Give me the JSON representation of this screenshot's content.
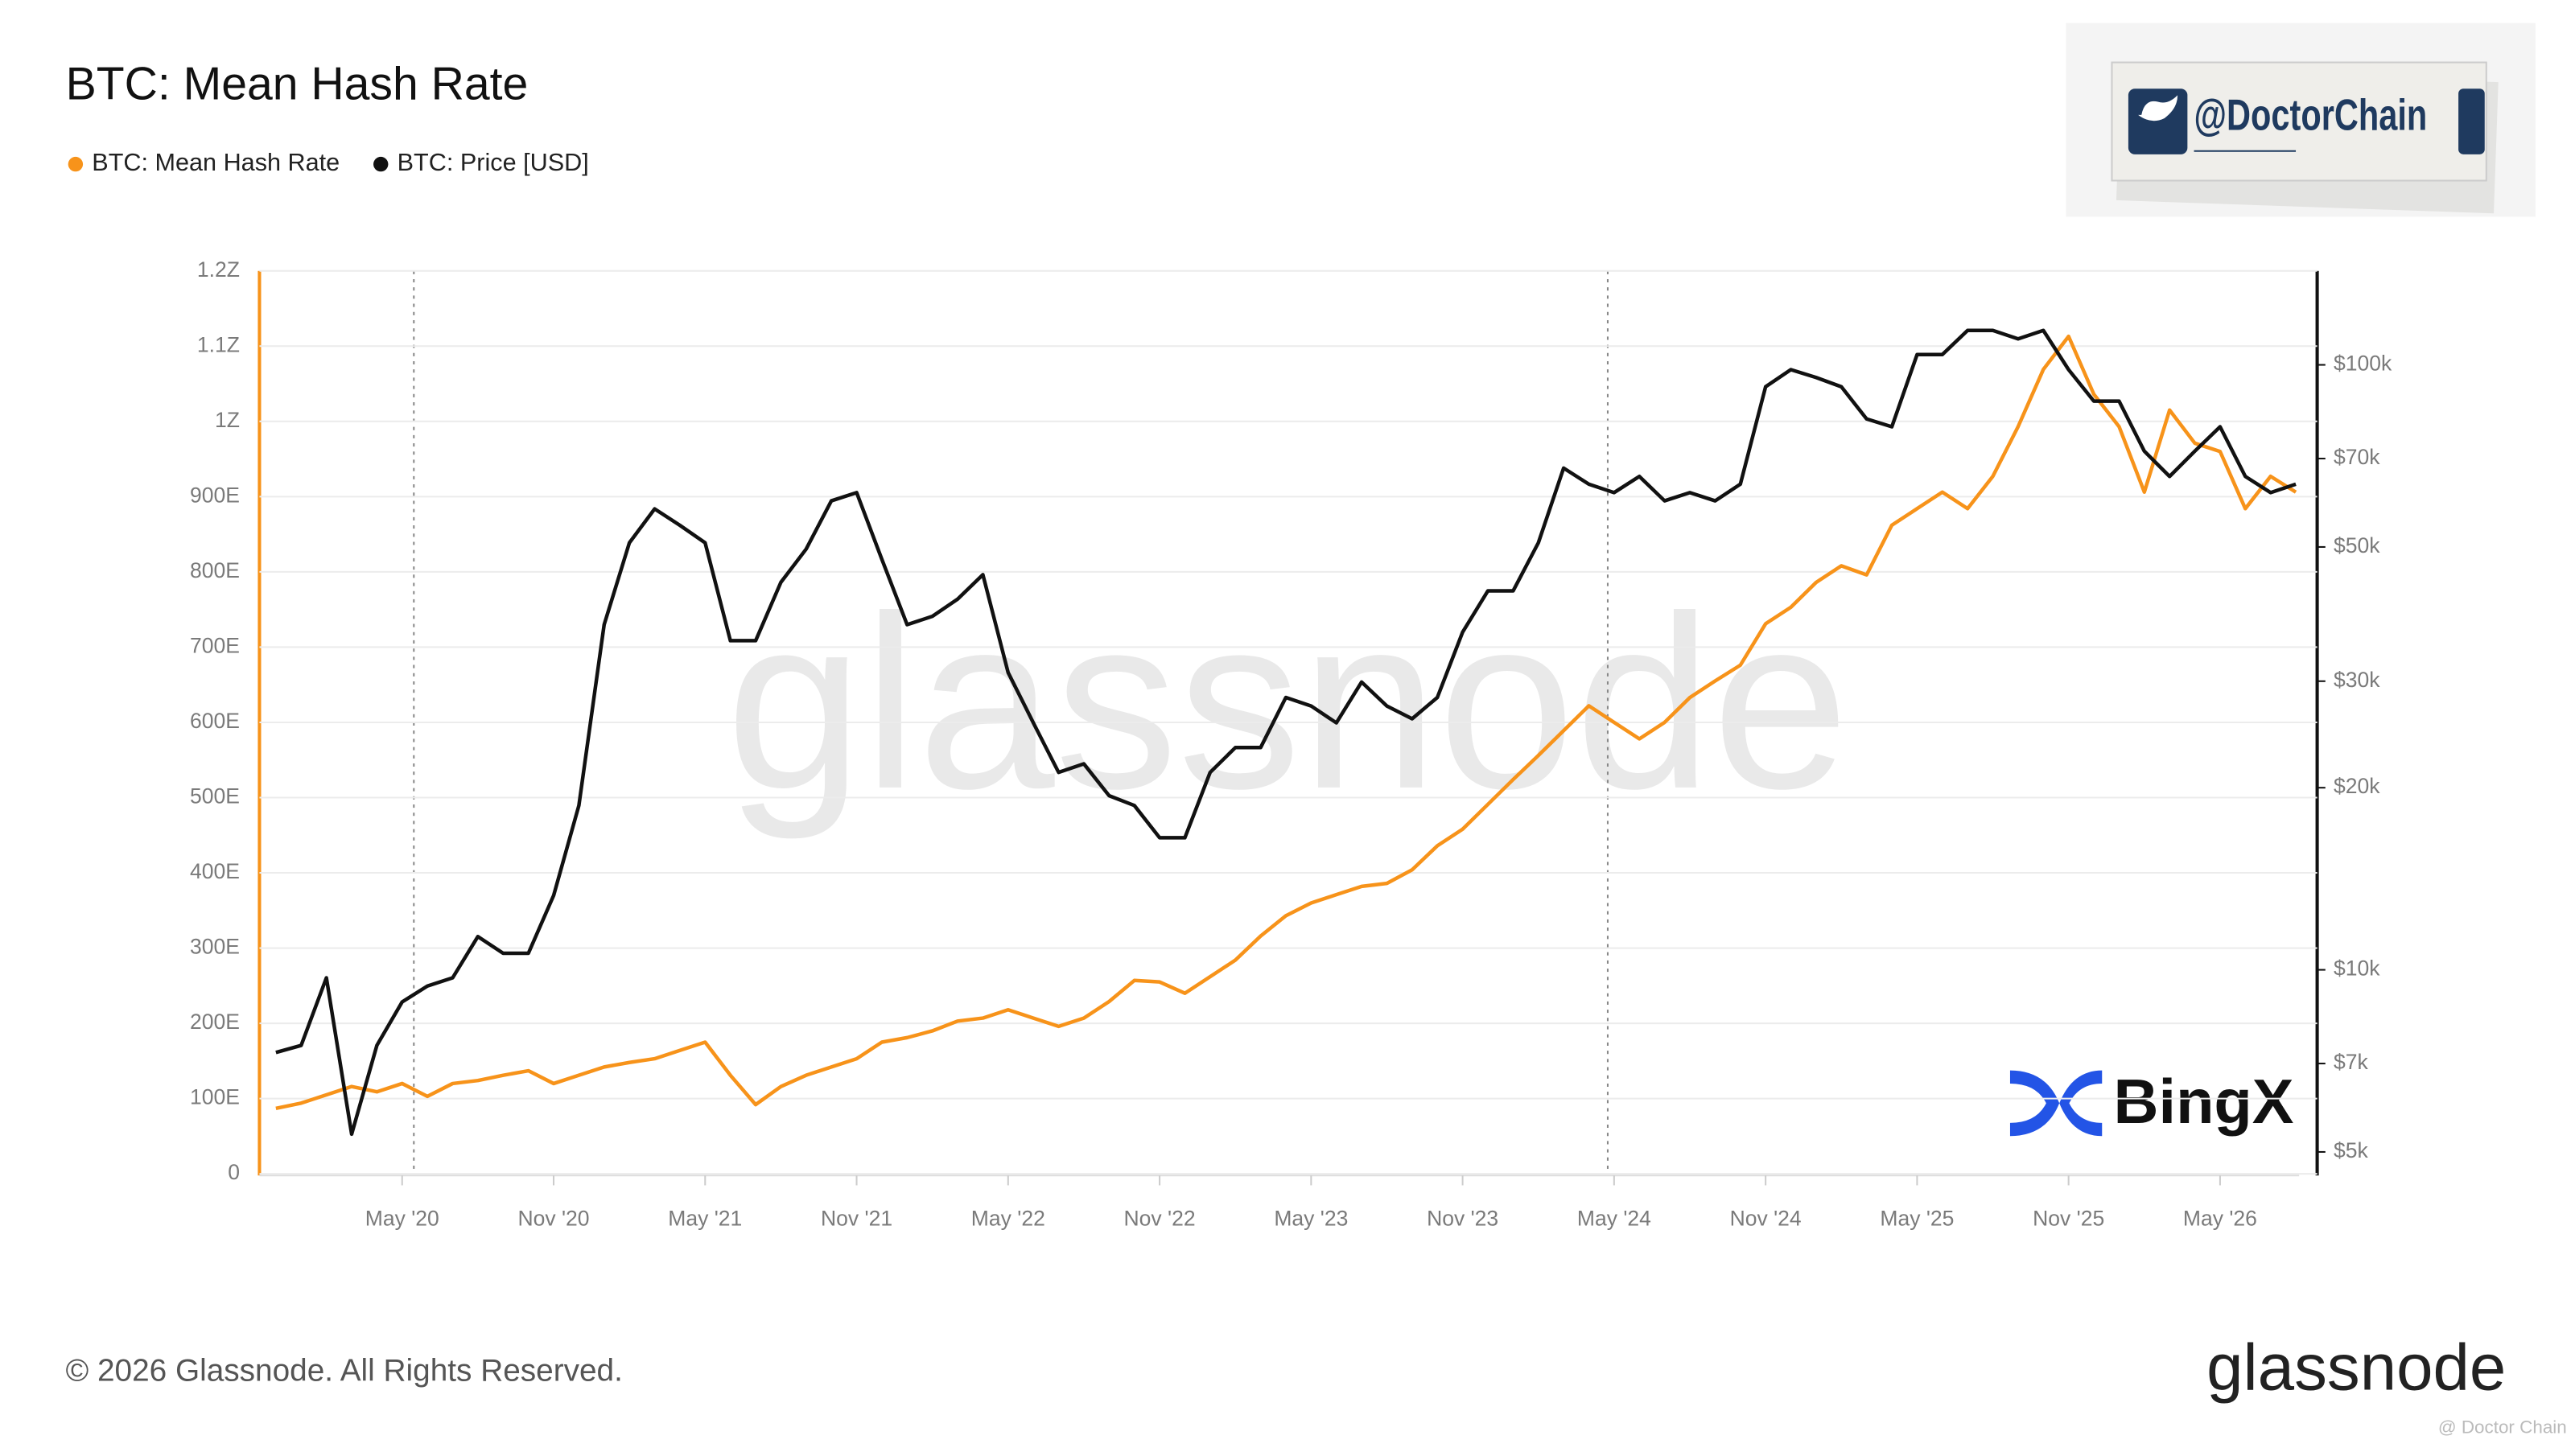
{
  "chart_data": {
    "type": "line",
    "title": "BTC: Mean Hash Rate",
    "x": [
      "2019-12",
      "2020-01",
      "2020-02",
      "2020-03",
      "2020-04",
      "2020-05",
      "2020-06",
      "2020-07",
      "2020-08",
      "2020-09",
      "2020-10",
      "2020-11",
      "2020-12",
      "2021-01",
      "2021-02",
      "2021-03",
      "2021-04",
      "2021-05",
      "2021-06",
      "2021-07",
      "2021-08",
      "2021-09",
      "2021-10",
      "2021-11",
      "2021-12",
      "2022-01",
      "2022-02",
      "2022-03",
      "2022-04",
      "2022-05",
      "2022-06",
      "2022-07",
      "2022-08",
      "2022-09",
      "2022-10",
      "2022-11",
      "2022-12",
      "2023-01",
      "2023-02",
      "2023-03",
      "2023-04",
      "2023-05",
      "2023-06",
      "2023-07",
      "2023-08",
      "2023-09",
      "2023-10",
      "2023-11",
      "2023-12",
      "2024-01",
      "2024-02",
      "2024-03",
      "2024-04",
      "2024-05",
      "2024-06",
      "2024-07",
      "2024-08",
      "2024-09",
      "2024-10",
      "2024-11",
      "2024-12",
      "2025-01",
      "2025-02",
      "2025-03",
      "2025-04",
      "2025-05",
      "2025-06",
      "2025-07",
      "2025-08",
      "2025-09",
      "2025-10",
      "2025-11",
      "2025-12",
      "2026-01",
      "2026-02",
      "2026-03",
      "2026-04",
      "2026-05",
      "2026-06",
      "2026-07",
      "2026-08"
    ],
    "series": [
      {
        "name": "BTC: Mean Hash Rate",
        "color": "#f7931a",
        "axis": "y",
        "values": [
          87,
          94,
          105,
          116,
          109,
          120,
          103,
          120,
          124,
          131,
          137,
          120,
          131,
          142,
          148,
          153,
          164,
          175,
          131,
          92,
          116,
          131,
          142,
          153,
          175,
          181,
          190,
          203,
          207,
          218,
          207,
          196,
          207,
          229,
          257,
          255,
          240,
          262,
          284,
          316,
          343,
          360,
          371,
          382,
          386,
          404,
          436,
          458,
          491,
          524,
          556,
          589,
          622,
          600,
          578,
          600,
          633,
          655,
          676,
          731,
          753,
          786,
          808,
          796,
          862,
          884,
          906,
          884,
          927,
          993,
          1069,
          1113,
          1036,
          993,
          906,
          1015,
          971,
          960,
          884,
          927,
          906
        ]
      },
      {
        "name": "BTC: Price [USD]",
        "color": "#111111",
        "axis": "y2",
        "values": [
          7300,
          7500,
          9700,
          5350,
          7500,
          8850,
          9400,
          9700,
          11350,
          10650,
          10650,
          13270,
          18690,
          37200,
          50800,
          57800,
          54300,
          50800,
          35000,
          35000,
          43700,
          49600,
          59600,
          61500,
          47700,
          37200,
          38400,
          41000,
          45000,
          31000,
          25600,
          21200,
          21900,
          19400,
          18690,
          16530,
          16530,
          21200,
          23300,
          23300,
          28200,
          27300,
          25600,
          29900,
          27300,
          26000,
          28200,
          36150,
          42300,
          42300,
          50800,
          67500,
          63500,
          61500,
          65400,
          59600,
          61500,
          59600,
          63500,
          92000,
          98200,
          95300,
          92000,
          81400,
          79000,
          104000,
          104000,
          114000,
          114000,
          110400,
          114000,
          98200,
          87100,
          87100,
          72000,
          65400,
          72000,
          79000,
          65400,
          61500,
          63500
        ]
      }
    ],
    "xticks": [
      {
        "value": "2020-05",
        "label": "May '20"
      },
      {
        "value": "2020-11",
        "label": "Nov '20"
      },
      {
        "value": "2021-05",
        "label": "May '21"
      },
      {
        "value": "2021-11",
        "label": "Nov '21"
      },
      {
        "value": "2022-05",
        "label": "May '22"
      },
      {
        "value": "2022-11",
        "label": "Nov '22"
      },
      {
        "value": "2023-05",
        "label": "May '23"
      },
      {
        "value": "2023-11",
        "label": "Nov '23"
      },
      {
        "value": "2024-05",
        "label": "May '24"
      },
      {
        "value": "2024-11",
        "label": "Nov '24"
      },
      {
        "value": "2025-05",
        "label": "May '25"
      },
      {
        "value": "2025-11",
        "label": "Nov '25"
      },
      {
        "value": "2026-05",
        "label": "May '26"
      }
    ],
    "ylim": [
      0,
      1200
    ],
    "yticks": [
      0,
      {
        "value": 100,
        "label": "100E"
      },
      {
        "value": 200,
        "label": "200E"
      },
      {
        "value": 300,
        "label": "300E"
      },
      {
        "value": 400,
        "label": "400E"
      },
      {
        "value": 500,
        "label": "500E"
      },
      {
        "value": 600,
        "label": "600E"
      },
      {
        "value": 700,
        "label": "700E"
      },
      {
        "value": 800,
        "label": "800E"
      },
      {
        "value": 900,
        "label": "900E"
      },
      {
        "value": 1000,
        "label": "1Z"
      },
      {
        "value": 1100,
        "label": "1.1Z"
      },
      {
        "value": 1200,
        "label": "1.2Z"
      }
    ],
    "y2lim": [
      4600,
      143000
    ],
    "y2scale": "log",
    "y2ticks": [
      {
        "value": 5000,
        "label": "$5k"
      },
      {
        "value": 7000,
        "label": "$7k"
      },
      {
        "value": 10000,
        "label": "$10k"
      },
      {
        "value": 20000,
        "label": "$20k"
      },
      {
        "value": 30000,
        "label": "$30k"
      },
      {
        "value": 50000,
        "label": "$50k"
      },
      {
        "value": 70000,
        "label": "$70k"
      },
      {
        "value": 100000,
        "label": "$100k"
      }
    ],
    "grid": true,
    "legend": "top-left",
    "watermark": "glassnode"
  },
  "page": {
    "copyright": "© 2026 Glassnode. All Rights Reserved.",
    "logo": "glassnode",
    "badge": "@DoctorChain",
    "sponsor": "BingX",
    "credit": "@ Doctor Chain"
  }
}
